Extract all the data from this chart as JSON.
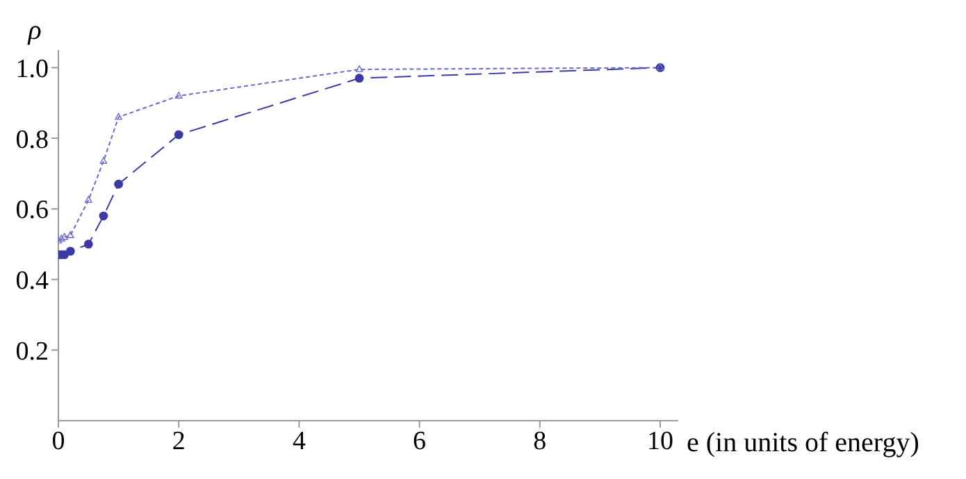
{
  "chart_data": {
    "type": "line",
    "xlabel": "e (in units of energy)",
    "ylabel": "ρ",
    "xlim": [
      0,
      10.3
    ],
    "xticks": [
      0,
      2,
      4,
      6,
      8,
      10
    ],
    "ylim": [
      0,
      1.05
    ],
    "yticks": [
      0.2,
      0.4,
      0.6,
      {
        "value": 1,
        "label": "1.0"
      },
      0.8
    ],
    "series": [
      {
        "color": "#3a3aa6",
        "marker": "circle",
        "line_style": "dashed",
        "x": [
          0,
          0.05,
          0.1,
          0.2,
          0.5,
          0.75,
          1,
          2,
          5,
          10
        ],
        "values": [
          0.47,
          0.47,
          0.47,
          0.48,
          0.5,
          0.58,
          0.67,
          0.81,
          0.97,
          1.0
        ]
      },
      {
        "color": "#6a6acc",
        "marker": "triangle",
        "line_style": "dotted",
        "x": [
          0,
          0.05,
          0.1,
          0.2,
          0.5,
          0.75,
          1,
          2,
          5,
          10
        ],
        "values": [
          0.51,
          0.515,
          0.52,
          0.525,
          0.625,
          0.735,
          0.86,
          0.92,
          0.995,
          1.0
        ]
      }
    ],
    "grid": false,
    "legend": false
  }
}
